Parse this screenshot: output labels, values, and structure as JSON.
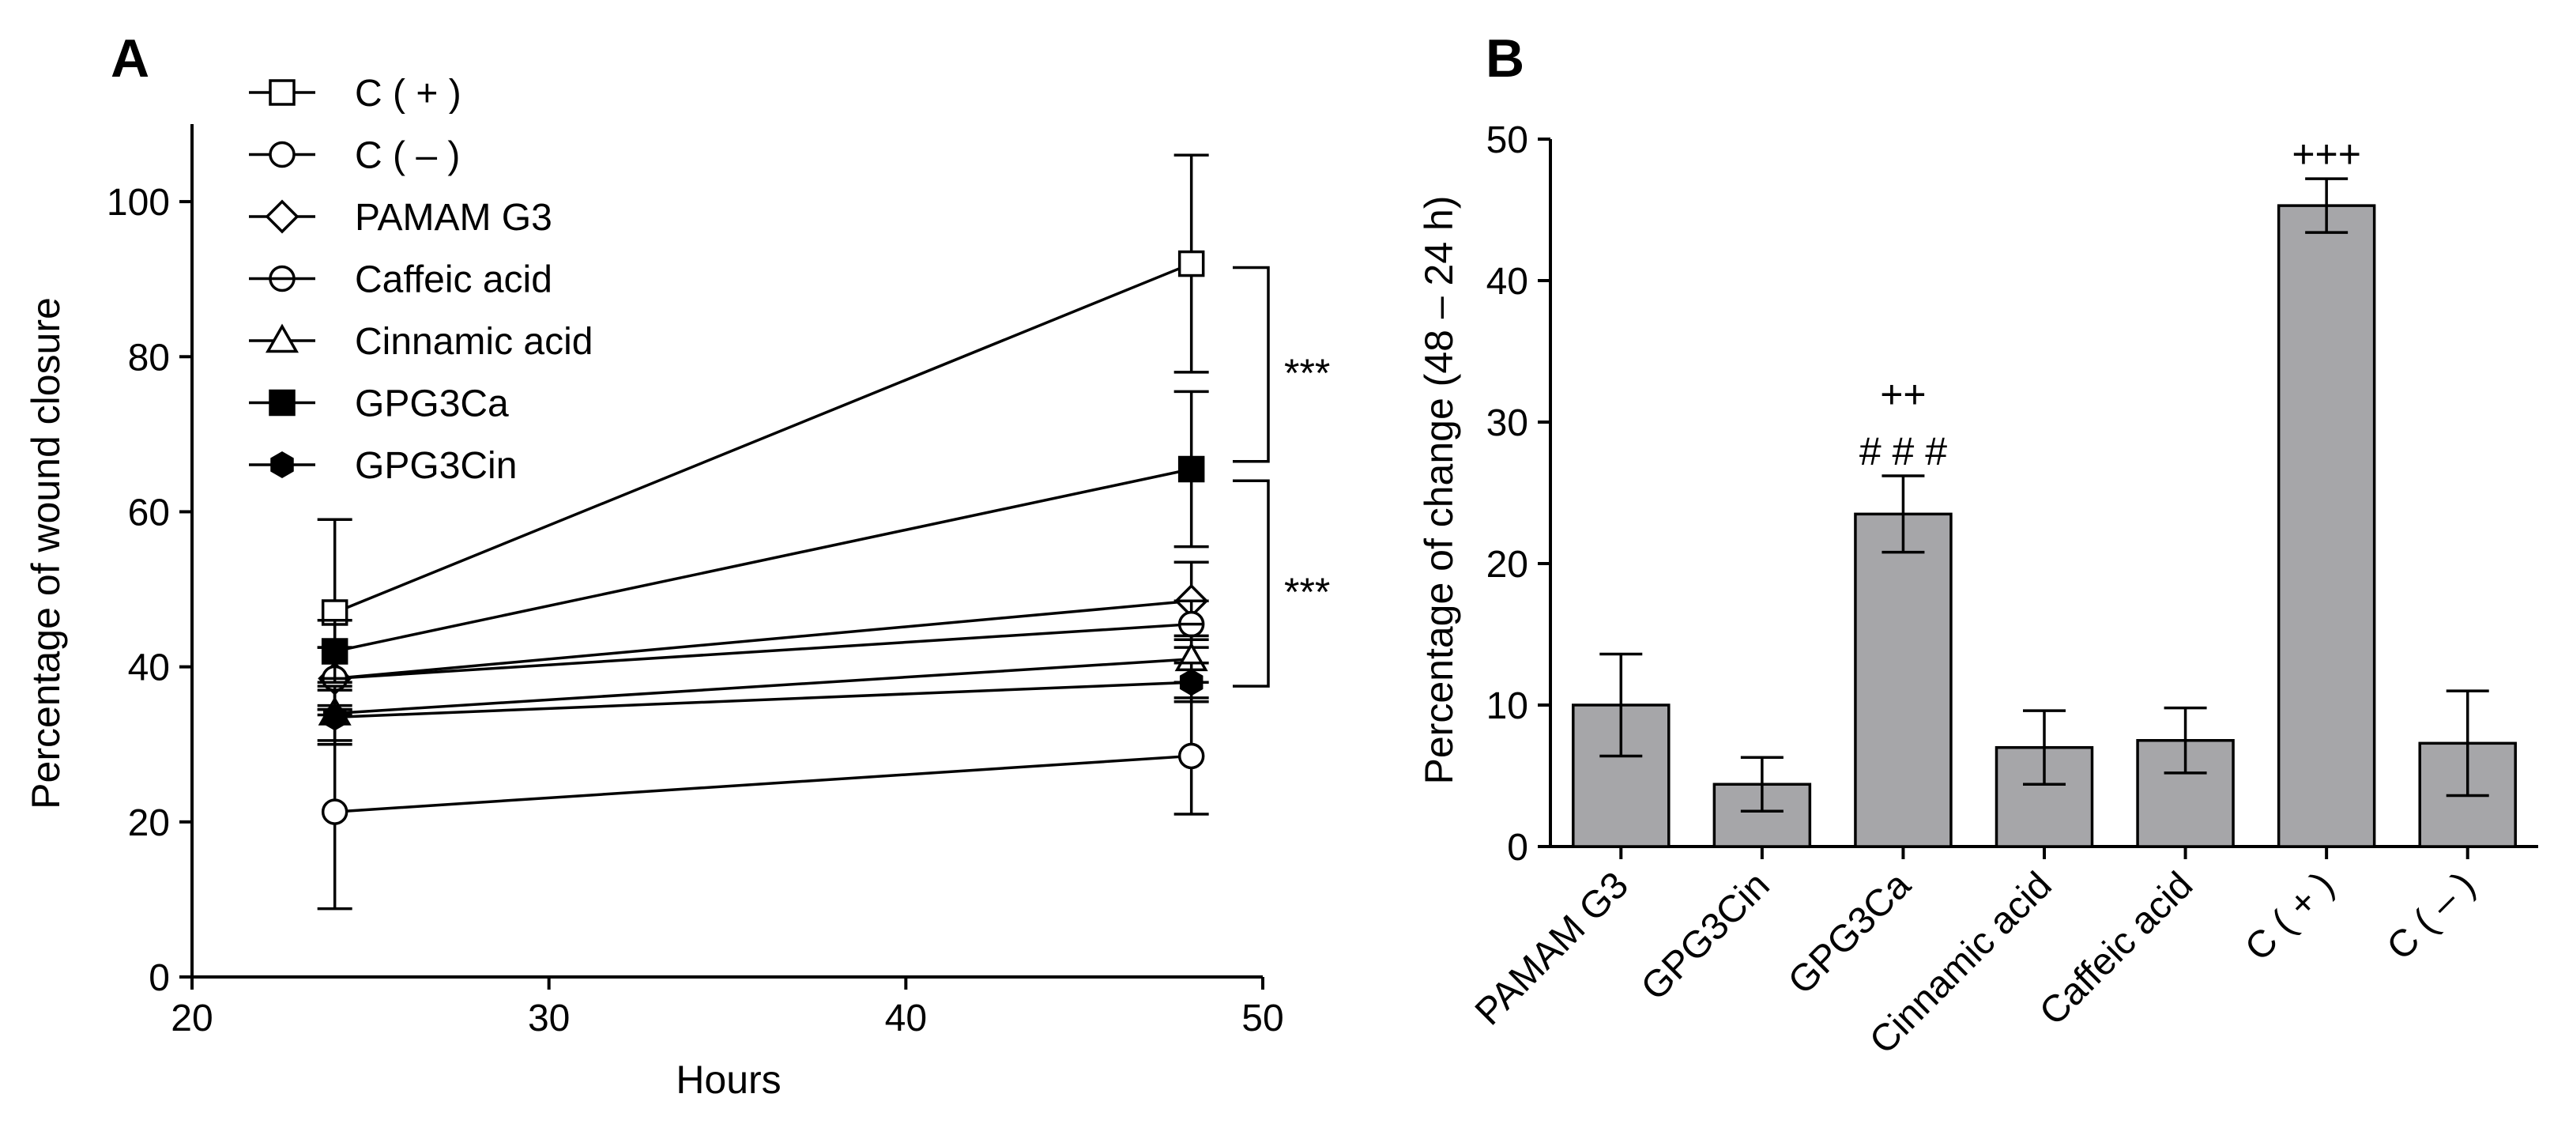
{
  "chart_data": [
    {
      "type": "line",
      "panel": "A",
      "title": "",
      "xlabel": "Hours",
      "ylabel": "Percentage of wound closure",
      "xlim": [
        20,
        50
      ],
      "ylim": [
        0,
        110
      ],
      "xticks": [
        20,
        30,
        40,
        50
      ],
      "yticks": [
        0,
        20,
        40,
        60,
        80,
        100
      ],
      "grid": false,
      "legend_position": "top-left",
      "x": [
        24,
        48
      ],
      "series": [
        {
          "name": "C ( + )",
          "marker": "square-open",
          "values": [
            47,
            92
          ],
          "errors": [
            12,
            14
          ]
        },
        {
          "name": "C ( – )",
          "marker": "circle-open",
          "values": [
            21.3,
            28.5
          ],
          "errors": [
            12.5,
            7.5
          ]
        },
        {
          "name": "PAMAM G3",
          "marker": "diamond-open",
          "values": [
            38.5,
            48.5
          ],
          "errors": [
            4,
            5
          ]
        },
        {
          "name": "Caffeic acid",
          "marker": "circle-half",
          "values": [
            38.5,
            45.5
          ],
          "errors": [
            4,
            3
          ]
        },
        {
          "name": "Cinnamic acid",
          "marker": "triangle-open",
          "values": [
            34,
            41
          ],
          "errors": [
            3.5,
            3
          ]
        },
        {
          "name": "GPG3Ca",
          "marker": "square-filled",
          "values": [
            42,
            65.5
          ],
          "errors": [
            4,
            10
          ]
        },
        {
          "name": "GPG3Cin",
          "marker": "hexagon-filled",
          "values": [
            33.5,
            38
          ],
          "errors": [
            3.5,
            2.5
          ]
        }
      ],
      "annotations": [
        {
          "text": "***",
          "from": 66.5,
          "to": 91.5
        },
        {
          "text": "***",
          "from": 37.5,
          "to": 64
        }
      ]
    },
    {
      "type": "bar",
      "panel": "B",
      "title": "",
      "xlabel": "",
      "ylabel": "Percentage of change (48 – 24 h)",
      "ylim": [
        0,
        50
      ],
      "yticks": [
        0,
        10,
        20,
        30,
        40,
        50
      ],
      "grid": false,
      "categories": [
        "PAMAM G3",
        "GPG3Cin",
        "GPG3Ca",
        "Cinnamic acid",
        "Caffeic acid",
        "C ( + )",
        "C ( – )"
      ],
      "values": [
        10,
        4.4,
        23.5,
        7,
        7.5,
        45.3,
        7.3
      ],
      "errors": [
        3.6,
        1.9,
        2.7,
        2.6,
        2.3,
        1.9,
        3.7
      ],
      "annotations": [
        {
          "category": "GPG3Ca",
          "lines": [
            "++",
            "# # #"
          ]
        },
        {
          "category": "C ( + )",
          "lines": [
            "+++"
          ]
        }
      ]
    }
  ],
  "panel_labels": [
    "A",
    "B"
  ]
}
